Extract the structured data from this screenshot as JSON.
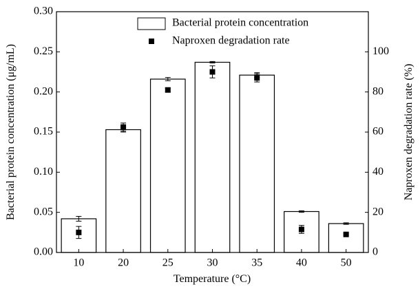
{
  "chart_data": {
    "type": "bar-scatter",
    "xlabel": "Temperature (°C)",
    "ylabel": "Bacterial protein concentration (μg/mL)",
    "y2label": "Naproxen degradation rate (%)",
    "categories": [
      "10",
      "20",
      "25",
      "30",
      "35",
      "40",
      "50"
    ],
    "series": [
      {
        "name": "Bacterial protein concentration",
        "kind": "bar",
        "color": "#ffffff",
        "edgecolor": "#000000",
        "values": [
          0.042,
          0.153,
          0.216,
          0.237,
          0.221,
          0.051,
          0.036
        ],
        "errors": [
          0.003,
          0.003,
          0.002,
          0.001,
          0.003,
          0.001,
          0.001
        ]
      },
      {
        "name": "Naproxen degradation rate",
        "kind": "scatter",
        "axis": "y2",
        "color": "#000000",
        "values": [
          10,
          62.5,
          81,
          90,
          87,
          11.5,
          9
        ],
        "errors": [
          3,
          2,
          1,
          3,
          2,
          2,
          0.5
        ]
      }
    ],
    "ylim": [
      0,
      0.3
    ],
    "yticks": [
      {
        "value": 0,
        "label": "0.00"
      },
      {
        "value": 0.05,
        "label": "0.05"
      },
      {
        "value": 0.1,
        "label": "0.10"
      },
      {
        "value": 0.15,
        "label": "0.15"
      },
      {
        "value": 0.2,
        "label": "0.20"
      },
      {
        "value": 0.25,
        "label": "0.25"
      },
      {
        "value": 0.3,
        "label": "0.30"
      }
    ],
    "y2lim": [
      0,
      120
    ],
    "y2ticks": [
      0,
      20,
      40,
      60,
      80,
      100
    ],
    "legend": "upper right"
  }
}
